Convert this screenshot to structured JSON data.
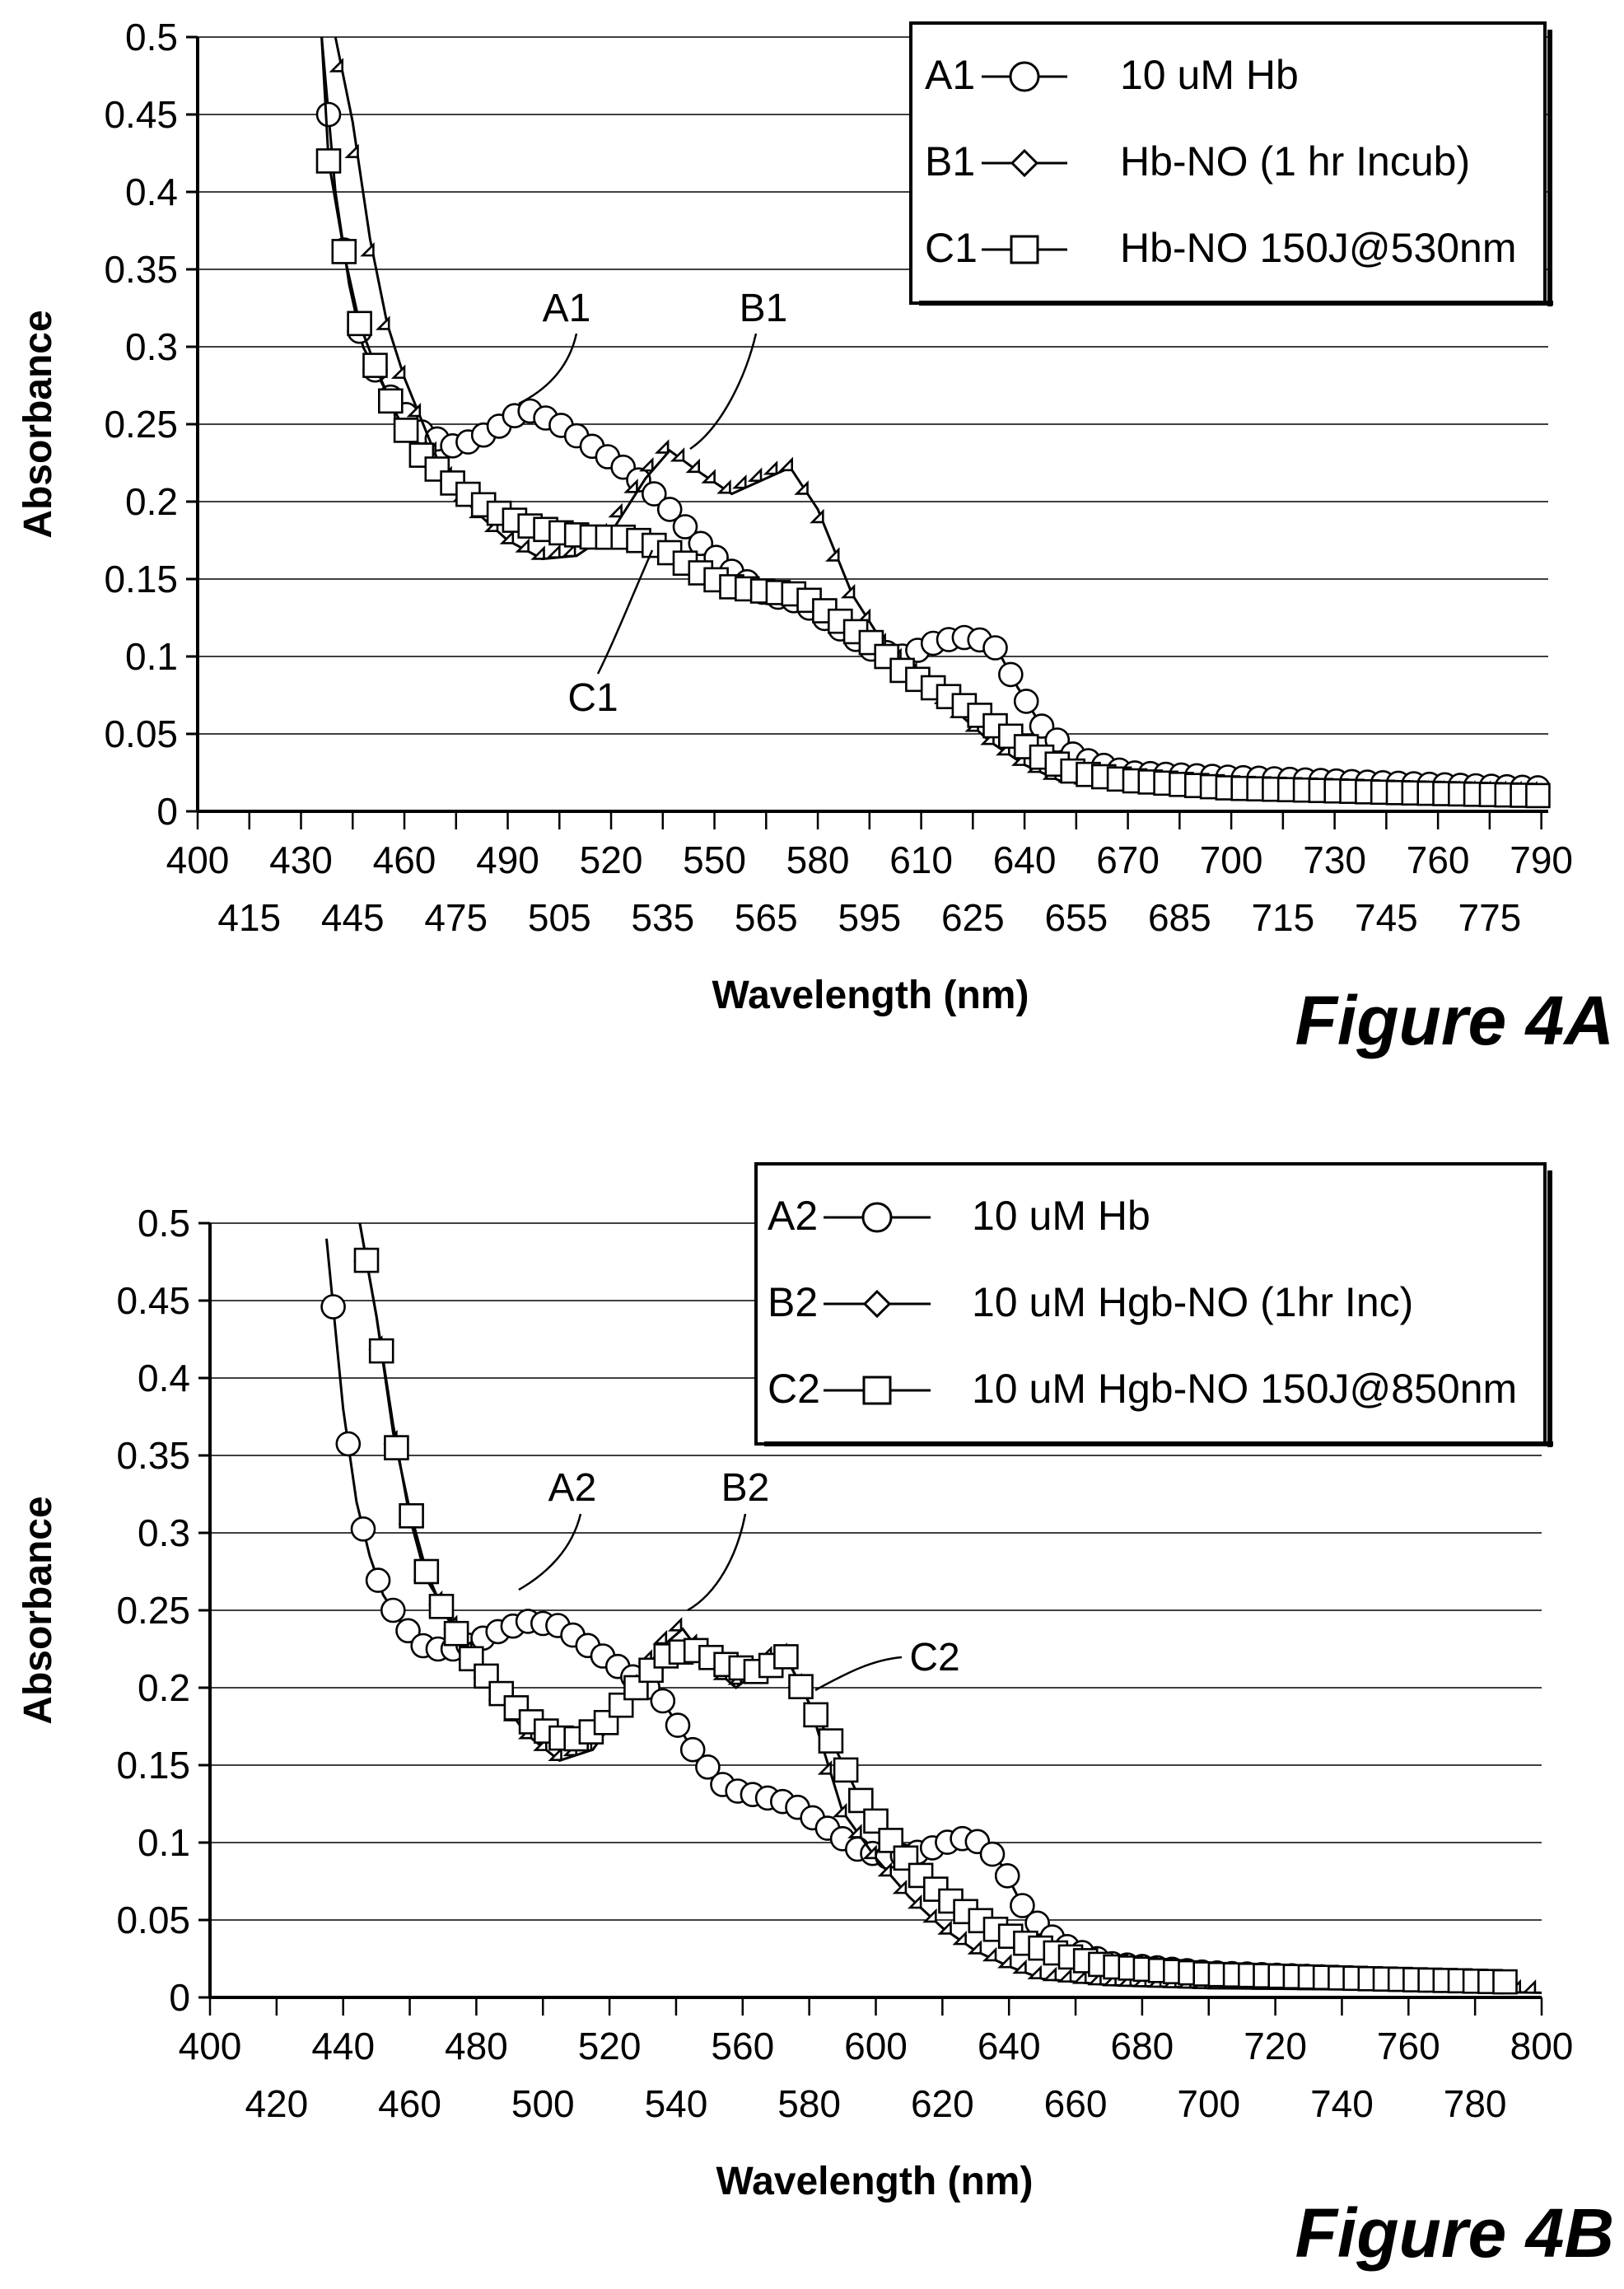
{
  "chart_data": [
    {
      "type": "line",
      "figure_label": "Figure 4A",
      "xlabel": "Wavelength (nm)",
      "ylabel": "Absorbance",
      "xlim": [
        400,
        792
      ],
      "ylim": [
        0,
        0.5
      ],
      "grid": true,
      "legend_position": "top-right",
      "y_ticks": [
        "0.5",
        "0.45",
        "0.4",
        "0.35",
        "0.3",
        "0.25",
        "0.2",
        "0.15",
        "0.1",
        "0.05",
        "0"
      ],
      "x_ticks_upper": [
        "400",
        "430",
        "460",
        "490",
        "520",
        "550",
        "580",
        "610",
        "640",
        "670",
        "700",
        "730",
        "760",
        "790"
      ],
      "x_ticks_lower": [
        "415",
        "445",
        "475",
        "505",
        "535",
        "565",
        "595",
        "625",
        "655",
        "685",
        "715",
        "745",
        "775"
      ],
      "series": [
        {
          "name": "10 uM Hb",
          "code": "A1",
          "marker": "circle",
          "points": [
            [
              436,
              0.5
            ],
            [
              440,
              0.4
            ],
            [
              444,
              0.34
            ],
            [
              448,
              0.3
            ],
            [
              455,
              0.27
            ],
            [
              465,
              0.245
            ],
            [
              475,
              0.235
            ],
            [
              485,
              0.245
            ],
            [
              495,
              0.26
            ],
            [
              505,
              0.25
            ],
            [
              515,
              0.235
            ],
            [
              525,
              0.22
            ],
            [
              535,
              0.2
            ],
            [
              545,
              0.175
            ],
            [
              555,
              0.155
            ],
            [
              565,
              0.14
            ],
            [
              575,
              0.135
            ],
            [
              585,
              0.12
            ],
            [
              595,
              0.105
            ],
            [
              605,
              0.1
            ],
            [
              615,
              0.11
            ],
            [
              625,
              0.113
            ],
            [
              632,
              0.105
            ],
            [
              638,
              0.08
            ],
            [
              645,
              0.055
            ],
            [
              655,
              0.035
            ],
            [
              670,
              0.025
            ],
            [
              700,
              0.022
            ],
            [
              750,
              0.018
            ],
            [
              792,
              0.015
            ]
          ]
        },
        {
          "name": "Hb-NO (1 hr Incub)",
          "code": "B1",
          "marker": "diamond",
          "points": [
            [
              440,
              0.5
            ],
            [
              445,
              0.445
            ],
            [
              450,
              0.37
            ],
            [
              455,
              0.315
            ],
            [
              460,
              0.28
            ],
            [
              470,
              0.225
            ],
            [
              480,
              0.195
            ],
            [
              490,
              0.175
            ],
            [
              500,
              0.163
            ],
            [
              510,
              0.165
            ],
            [
              520,
              0.18
            ],
            [
              530,
              0.215
            ],
            [
              537,
              0.233
            ],
            [
              545,
              0.22
            ],
            [
              555,
              0.205
            ],
            [
              565,
              0.215
            ],
            [
              572,
              0.222
            ],
            [
              580,
              0.195
            ],
            [
              590,
              0.14
            ],
            [
              600,
              0.105
            ],
            [
              610,
              0.085
            ],
            [
              620,
              0.065
            ],
            [
              630,
              0.045
            ],
            [
              640,
              0.03
            ],
            [
              650,
              0.02
            ],
            [
              670,
              0.015
            ],
            [
              700,
              0.013
            ],
            [
              750,
              0.012
            ],
            [
              792,
              0.011
            ]
          ]
        },
        {
          "name": "Hb-NO 150J@530nm",
          "code": "C1",
          "marker": "square",
          "points": [
            [
              436,
              0.5
            ],
            [
              438,
              0.42
            ],
            [
              443,
              0.355
            ],
            [
              447,
              0.315
            ],
            [
              452,
              0.285
            ],
            [
              458,
              0.255
            ],
            [
              465,
              0.23
            ],
            [
              475,
              0.21
            ],
            [
              485,
              0.195
            ],
            [
              495,
              0.185
            ],
            [
              505,
              0.18
            ],
            [
              515,
              0.177
            ],
            [
              525,
              0.177
            ],
            [
              535,
              0.17
            ],
            [
              545,
              0.155
            ],
            [
              555,
              0.145
            ],
            [
              565,
              0.142
            ],
            [
              575,
              0.14
            ],
            [
              585,
              0.125
            ],
            [
              595,
              0.11
            ],
            [
              605,
              0.09
            ],
            [
              615,
              0.078
            ],
            [
              625,
              0.065
            ],
            [
              635,
              0.05
            ],
            [
              645,
              0.035
            ],
            [
              655,
              0.025
            ],
            [
              670,
              0.02
            ],
            [
              700,
              0.015
            ],
            [
              750,
              0.012
            ],
            [
              792,
              0.01
            ]
          ]
        }
      ],
      "annotations": [
        "A1",
        "B1",
        "C1"
      ]
    },
    {
      "type": "line",
      "figure_label": "Figure 4B",
      "xlabel": "Wavelength (nm)",
      "ylabel": "Absorbance",
      "xlim": [
        400,
        800
      ],
      "ylim": [
        0,
        0.5
      ],
      "grid": true,
      "legend_position": "top-right",
      "y_ticks": [
        "0.5",
        "0.45",
        "0.4",
        "0.35",
        "0.3",
        "0.25",
        "0.2",
        "0.15",
        "0.1",
        "0.05",
        "0"
      ],
      "x_ticks_upper": [
        "400",
        "440",
        "480",
        "520",
        "560",
        "600",
        "640",
        "680",
        "720",
        "760",
        "800"
      ],
      "x_ticks_lower": [
        "420",
        "460",
        "500",
        "540",
        "580",
        "620",
        "660",
        "700",
        "740",
        "780"
      ],
      "series": [
        {
          "name": "10 uM Hb",
          "code": "A2",
          "marker": "circle",
          "points": [
            [
              435,
              0.49
            ],
            [
              440,
              0.38
            ],
            [
              444,
              0.32
            ],
            [
              448,
              0.285
            ],
            [
              452,
              0.26
            ],
            [
              458,
              0.24
            ],
            [
              465,
              0.225
            ],
            [
              475,
              0.225
            ],
            [
              485,
              0.235
            ],
            [
              495,
              0.243
            ],
            [
              505,
              0.24
            ],
            [
              515,
              0.225
            ],
            [
              525,
              0.21
            ],
            [
              535,
              0.195
            ],
            [
              545,
              0.16
            ],
            [
              555,
              0.135
            ],
            [
              565,
              0.13
            ],
            [
              575,
              0.125
            ],
            [
              585,
              0.11
            ],
            [
              595,
              0.095
            ],
            [
              605,
              0.09
            ],
            [
              615,
              0.095
            ],
            [
              625,
              0.103
            ],
            [
              632,
              0.1
            ],
            [
              638,
              0.085
            ],
            [
              645,
              0.055
            ],
            [
              655,
              0.035
            ],
            [
              670,
              0.022
            ],
            [
              700,
              0.016
            ],
            [
              750,
              0.012
            ],
            [
              790,
              0.01
            ]
          ]
        },
        {
          "name": "10 uM Hgb-NO (1hr Inc)",
          "code": "B2",
          "marker": "diamond",
          "points": [
            [
              445,
              0.5
            ],
            [
              450,
              0.44
            ],
            [
              455,
              0.37
            ],
            [
              460,
              0.31
            ],
            [
              465,
              0.27
            ],
            [
              475,
              0.235
            ],
            [
              485,
              0.2
            ],
            [
              495,
              0.17
            ],
            [
              505,
              0.153
            ],
            [
              515,
              0.16
            ],
            [
              525,
              0.19
            ],
            [
              535,
              0.225
            ],
            [
              542,
              0.238
            ],
            [
              550,
              0.215
            ],
            [
              558,
              0.2
            ],
            [
              565,
              0.212
            ],
            [
              572,
              0.225
            ],
            [
              580,
              0.19
            ],
            [
              590,
              0.12
            ],
            [
              600,
              0.09
            ],
            [
              610,
              0.065
            ],
            [
              620,
              0.045
            ],
            [
              630,
              0.03
            ],
            [
              640,
              0.02
            ],
            [
              650,
              0.012
            ],
            [
              670,
              0.008
            ],
            [
              700,
              0.006
            ],
            [
              750,
              0.005
            ],
            [
              800,
              0.003
            ]
          ]
        },
        {
          "name": "10 uM Hgb-NO 150J@850nm",
          "code": "C2",
          "marker": "square",
          "points": [
            [
              445,
              0.5
            ],
            [
              450,
              0.44
            ],
            [
              455,
              0.365
            ],
            [
              460,
              0.315
            ],
            [
              465,
              0.275
            ],
            [
              470,
              0.25
            ],
            [
              478,
              0.22
            ],
            [
              488,
              0.195
            ],
            [
              498,
              0.175
            ],
            [
              508,
              0.165
            ],
            [
              518,
              0.175
            ],
            [
              528,
              0.2
            ],
            [
              536,
              0.22
            ],
            [
              545,
              0.225
            ],
            [
              555,
              0.215
            ],
            [
              565,
              0.21
            ],
            [
              573,
              0.22
            ],
            [
              580,
              0.19
            ],
            [
              588,
              0.16
            ],
            [
              596,
              0.125
            ],
            [
              605,
              0.1
            ],
            [
              615,
              0.075
            ],
            [
              625,
              0.058
            ],
            [
              635,
              0.045
            ],
            [
              645,
              0.035
            ],
            [
              655,
              0.028
            ],
            [
              670,
              0.02
            ],
            [
              700,
              0.015
            ],
            [
              750,
              0.012
            ],
            [
              790,
              0.01
            ]
          ]
        }
      ],
      "annotations": [
        "A2",
        "B2",
        "C2"
      ]
    }
  ]
}
